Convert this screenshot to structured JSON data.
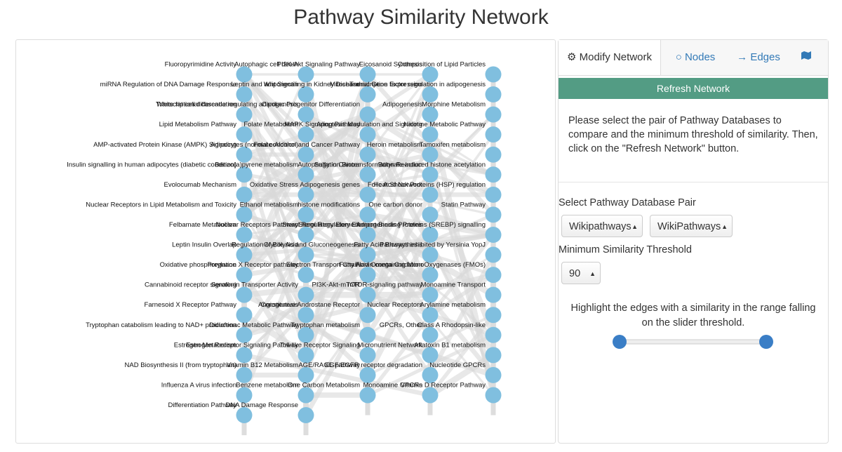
{
  "header": {
    "title": "Pathway Similarity Network"
  },
  "network": {
    "columns": [
      [
        "Fluoropyrimidine Activity",
        "miRNA Regulation of DNA Damage Response",
        "White fat cell differentiation",
        "Lipid Metabolism Pathway",
        "AMP-activated Protein Kinase (AMPK) Signaling",
        "Insulin signalling in human adipocytes (diabetic condition)",
        "Evolocumab Mechanism",
        "Nuclear Receptors in Lipid Metabolism and Toxicity",
        "Felbamate Metabolism",
        "Leptin Insulin Overlap",
        "Oxidative phosphorylation",
        "Cannabinoid receptor signaling",
        "Farnesoid X Receptor  Pathway",
        "Tryptophan catabolism leading to NAD+ production",
        "Estrogen Metabolism",
        "NAD Biosynthesis II (from tryptophan)",
        "Influenza A virus infection",
        "Differentiation Pathway"
      ],
      [
        "Autophagic cell death",
        "Leptin and adiponectin",
        "Transcriptional cascade regulating adipogenesis",
        "Folate Metabolism",
        "Adipocytes (normal condition)",
        "Benzo(a)pyrene metabolism",
        "Oxidative Stress",
        "Ethanol metabolism",
        "Nuclear Receptors Pathway",
        "Regulation of Bile Acid",
        "Pregnane X Receptor pathway",
        "Serotonin Transporter Activity",
        "Angiogenesis",
        "Diclofenac Metabolic Pathway",
        "Estrogen Receptor Signaling Pathway",
        "Vitamin B12 Metabolism",
        "Benzene metabolism",
        "DNA Damage Response"
      ],
      [
        "PI3K-Akt Signaling Pathway",
        "Wnt Signaling in Kidney Disease",
        "Cardiac Progenitor Differentiation",
        "MAPK Signaling Pathway",
        "Folate-Alcohol and Cancer Pathway",
        "Autophagy in Cancer",
        "Adipogenesis genes",
        "histone modifications",
        "Sterol Regulatory Element",
        "Glycolysis and Gluconeogenesis",
        "Electron Transport Chain",
        "PI3K-Akt-mTOR",
        "Constitutive Androstane Receptor",
        "Tryptophan metabolism",
        "Toll-like Receptor Signaling",
        "AGE/RAGE pathway",
        "One Carbon Metabolism"
      ],
      [
        "Eicosanoid Synthesis",
        "Mitochondrial Gene Expression",
        "Adipogenesis",
        "Apoptosis Modulation and Signaling",
        "Heroin metabolism",
        "Sulfation Biotransformation Reaction",
        "Folic Acid Network",
        "One carbon donor",
        "Adipogenesis Proteins",
        "Fatty Acid Biosynthesis",
        "Fatty Acid Omega Oxidation",
        "mTOR-signaling pathway",
        "Nuclear Receptors",
        "GPCRs, Other",
        "Micronutrient Network",
        "EGF/EGFR receptor degradation",
        "Monoamine GPCRs"
      ],
      [
        "Composition of Lipid Particles",
        "Transcription factor regulation in adipogenesis",
        "Morphine Metabolism",
        "Nicotine Metabolic Pathway",
        "Tamoxifen metabolism",
        "Butyrate-induced histone acetylation",
        "Heat Shock Proteins (HSP) regulation",
        "Statin Pathway",
        "Sterol Regulatory Element-Binding Proteins (SREBP) signalling",
        "Pathways inhibited by Yersinia YopJ",
        "Flavin containing MonoOxygenases (FMOs)",
        "Monoamine Transport",
        "Arylamine metabolism",
        "Class A Rhodopsin-like",
        "Aflatoxin B1 metabolism",
        "Nucleotide GPCRs",
        "Vitamin D Receptor Pathway"
      ]
    ]
  },
  "panel": {
    "tabs": [
      "Modify Network",
      "Nodes",
      "Edges"
    ],
    "refresh_button": "Refresh Network",
    "instructions": "Please select the pair of Pathway Databases to compare and the minimum threshold of similarity. Then, click on the \"Refresh Network\" button.",
    "database_pair_label": "Select Pathway Database Pair",
    "database_options": [
      "Wikipathways",
      "WikiPathways"
    ],
    "threshold_label": "Minimum Similarity Threshold",
    "threshold_value": 90,
    "highlight_label": "Highlight the edges with a similarity in the range falling on the slider threshold."
  }
}
